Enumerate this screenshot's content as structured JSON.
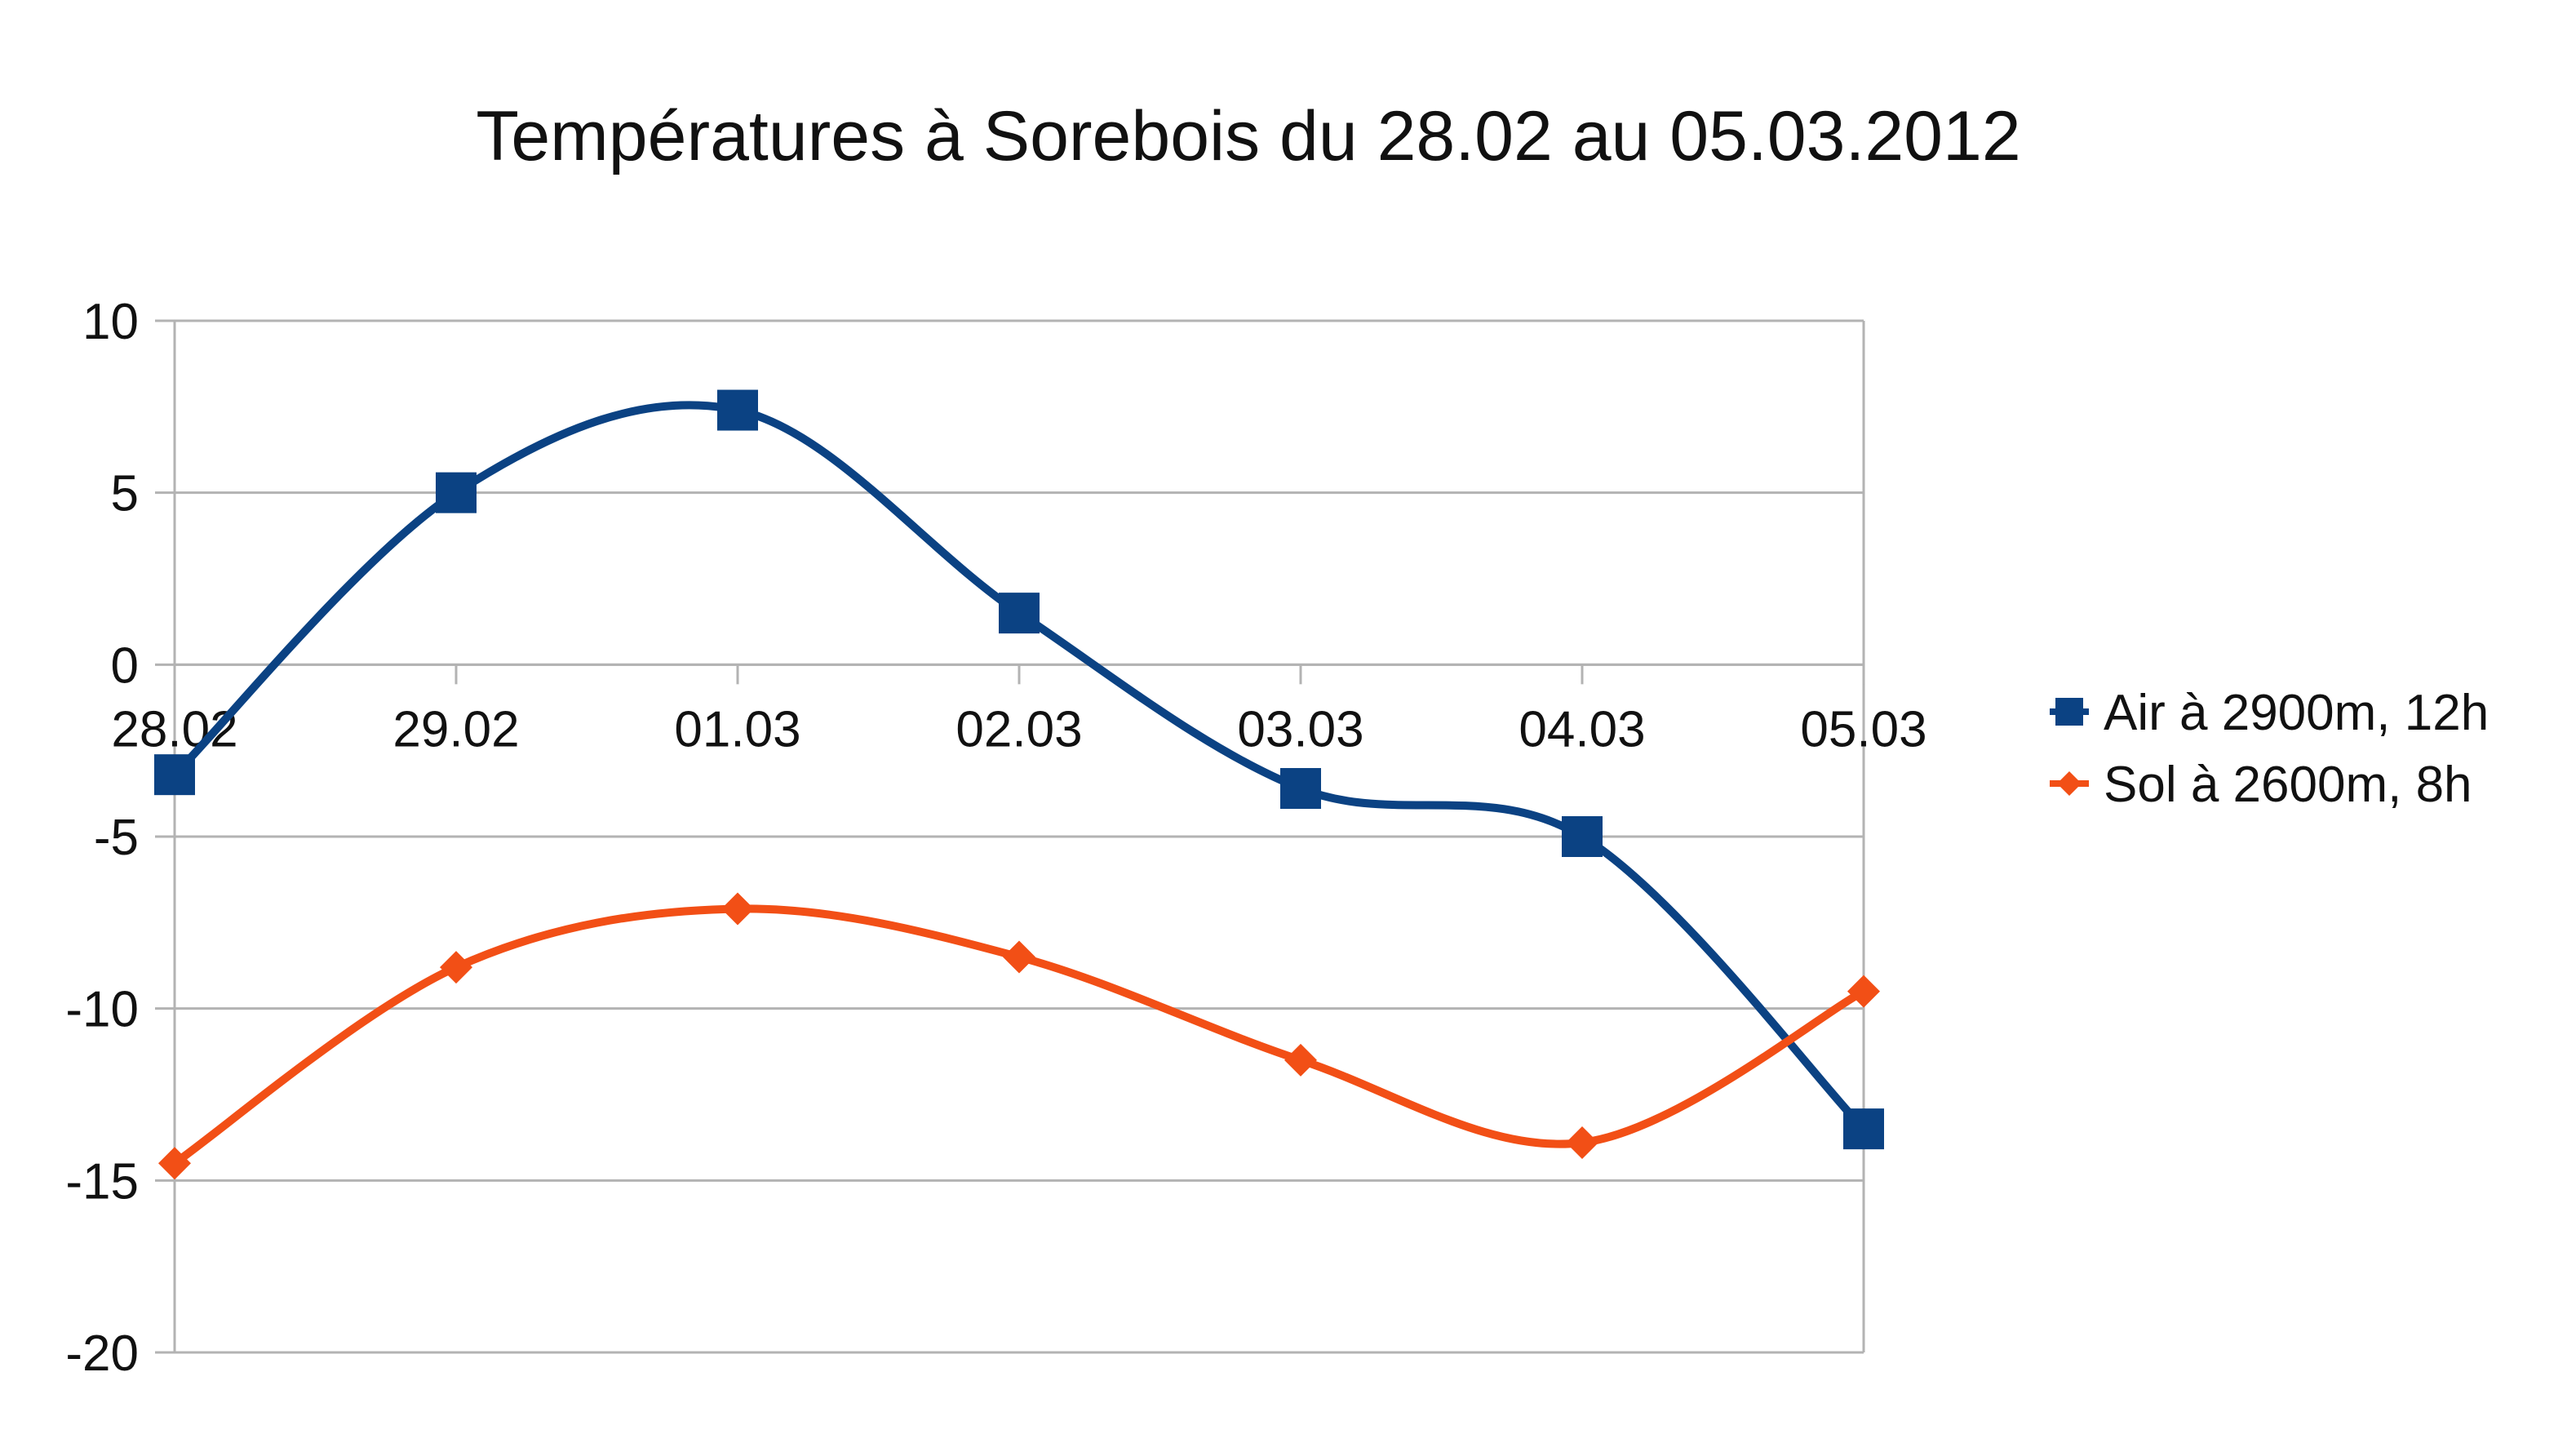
{
  "chart_data": {
    "type": "line",
    "title": "Températures à Sorebois du 28.02 au 05.03.2012",
    "categories": [
      "28.02",
      "29.02",
      "01.03",
      "02.03",
      "03.03",
      "04.03",
      "05.03"
    ],
    "ylim": [
      -20,
      10
    ],
    "yticks": [
      10,
      5,
      0,
      -5,
      -10,
      -15,
      -20
    ],
    "grid": "horizontal",
    "smooth": true,
    "legend_position": "right",
    "series": [
      {
        "name": "Air à 2900m, 12h",
        "marker": "square",
        "color": "#0b4283",
        "values": [
          -3.2,
          5.0,
          7.4,
          1.5,
          -3.6,
          -5.0,
          -13.5
        ]
      },
      {
        "name": "Sol à 2600m, 8h",
        "marker": "diamond",
        "color": "#f24f16",
        "values": [
          -14.5,
          -8.8,
          -7.1,
          -8.5,
          -11.5,
          -13.9,
          -9.5
        ]
      }
    ]
  }
}
